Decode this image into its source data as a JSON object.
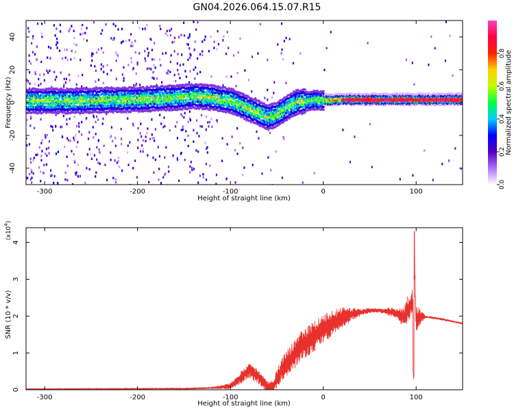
{
  "title": "GN04.2026.064.15.07.R15",
  "chart_data": [
    {
      "type": "heatmap",
      "name": "spectrogram",
      "xlabel": "Height of straight line (km)",
      "ylabel": "Frequency (Hz)",
      "xlim": [
        -320,
        150
      ],
      "ylim": [
        -50,
        50
      ],
      "xticks": [
        -300,
        -200,
        -100,
        0,
        100
      ],
      "yticks": [
        -40,
        -20,
        0,
        20,
        40
      ],
      "xtick_labels": [
        "-300",
        "-200",
        "-100",
        "0",
        "100"
      ],
      "ytick_labels": [
        "-40",
        "-20",
        "0",
        "20",
        "40"
      ],
      "centerline": {
        "x": [
          -320,
          -280,
          -240,
          -200,
          -160,
          -140,
          -120,
          -100,
          -80,
          -60,
          -50,
          -40,
          -30,
          -20,
          -10,
          0,
          20,
          40,
          60,
          80,
          90,
          100,
          120,
          150
        ],
        "freq": [
          1,
          1,
          1.5,
          2,
          3,
          4,
          3,
          1,
          -4,
          -9,
          -7,
          -3,
          0,
          1,
          1.5,
          1.5,
          2,
          2,
          2,
          2,
          2,
          2,
          2,
          2
        ]
      },
      "colorbar": {
        "label": "Normalized spectral amplitude",
        "range": [
          0,
          1
        ],
        "ticks": [
          0.0,
          0.2,
          0.4,
          0.6,
          0.8
        ],
        "tick_labels": [
          "0.0",
          "0.2",
          "0.4",
          "0.6",
          "0.8"
        ],
        "colors": [
          "#ffffff",
          "#b070ff",
          "#5000c0",
          "#0000ff",
          "#00d0ff",
          "#00ff40",
          "#c0ff00",
          "#ffd000",
          "#ff2000",
          "#ff0040",
          "#ff40c0"
        ]
      }
    },
    {
      "type": "line",
      "name": "snr",
      "xlabel": "Height of straight line (km)",
      "ylabel": "SNR (10 * v/v)",
      "multiplier": "(x10",
      "multiplier_exp": "4",
      "multiplier_close": ")",
      "xlim": [
        -320,
        150
      ],
      "ylim": [
        0,
        4.4
      ],
      "xticks": [
        -300,
        -200,
        -100,
        0,
        100
      ],
      "yticks": [
        0,
        1,
        2,
        3,
        4
      ],
      "xtick_labels": [
        "-300",
        "-200",
        "-100",
        "0",
        "100"
      ],
      "ytick_labels": [
        "0",
        "1",
        "2",
        "3",
        "4"
      ],
      "line_color": "#e8302c",
      "envelope": {
        "x": [
          -320,
          -150,
          -120,
          -100,
          -90,
          -80,
          -75,
          -70,
          -65,
          -60,
          -55,
          -50,
          -45,
          -40,
          -30,
          -20,
          -10,
          0,
          10,
          20,
          30,
          40,
          50,
          60,
          70,
          75,
          80,
          85,
          88,
          90,
          92,
          94,
          96,
          97,
          98,
          99,
          100,
          102,
          105,
          110,
          120,
          135,
          150
        ],
        "y": [
          0.02,
          0.03,
          0.05,
          0.1,
          0.3,
          0.55,
          0.45,
          0.35,
          0.2,
          0.1,
          0.05,
          0.3,
          0.55,
          0.7,
          1.0,
          1.25,
          1.45,
          1.65,
          1.8,
          1.95,
          2.05,
          2.1,
          2.15,
          2.15,
          2.12,
          2.1,
          2.05,
          2.0,
          2.0,
          2.2,
          2.1,
          2.3,
          2.5,
          1.5,
          3.5,
          2.8,
          1.9,
          1.95,
          2.0,
          1.98,
          1.95,
          1.88,
          1.8
        ]
      },
      "noise_amp": {
        "x": [
          -320,
          -120,
          -100,
          -80,
          -60,
          -40,
          -20,
          0,
          20,
          40,
          60,
          80,
          90,
          100,
          110,
          150
        ],
        "a": [
          0.01,
          0.02,
          0.08,
          0.22,
          0.15,
          0.35,
          0.45,
          0.4,
          0.3,
          0.08,
          0.05,
          0.15,
          0.35,
          0.35,
          0.03,
          0.02
        ]
      }
    }
  ]
}
